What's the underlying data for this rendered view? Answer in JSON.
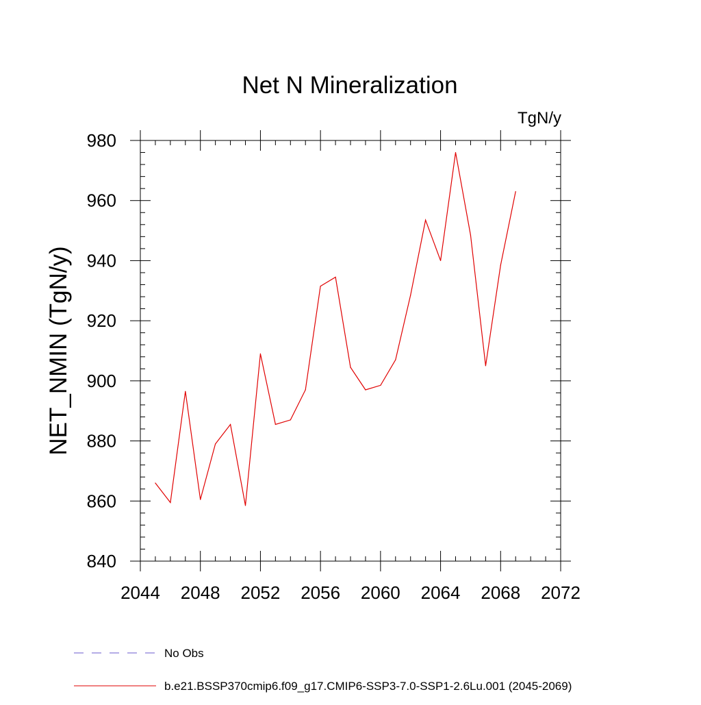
{
  "chart_data": {
    "type": "line",
    "title": "Net N Mineralization",
    "units_label": "TgN/y",
    "xlabel": "",
    "ylabel": "NET_NMIN  (TgN/y)",
    "xlim": [
      2044,
      2072
    ],
    "ylim": [
      840,
      980
    ],
    "x_ticks": [
      2044,
      2048,
      2052,
      2056,
      2060,
      2064,
      2068,
      2072
    ],
    "x_tick_labels": [
      "2044",
      "2048",
      "2052",
      "2056",
      "2060",
      "2064",
      "2068",
      "2072"
    ],
    "y_ticks": [
      840,
      860,
      880,
      900,
      920,
      940,
      960,
      980
    ],
    "y_tick_labels": [
      "840",
      "860",
      "880",
      "900",
      "920",
      "940",
      "960",
      "980"
    ],
    "grid": false,
    "legend_placement": "bottom",
    "series": [
      {
        "name": "b.e21.BSSP370cmip6.f09_g17.CMIP6-SSP3-7.0-SSP1-2.6Lu.001 (2045-2069)",
        "color": "#e00000",
        "style": "solid",
        "x": [
          2045,
          2046,
          2047,
          2048,
          2049,
          2050,
          2051,
          2052,
          2053,
          2054,
          2055,
          2056,
          2057,
          2058,
          2059,
          2060,
          2061,
          2062,
          2063,
          2064,
          2065,
          2066,
          2067,
          2068,
          2069
        ],
        "values": [
          866,
          859.5,
          896.5,
          860.5,
          879,
          885.5,
          858.5,
          909,
          885.5,
          887,
          897,
          931.5,
          934.5,
          904.5,
          897,
          898.5,
          907,
          928.5,
          953.5,
          940,
          976,
          948.5,
          905,
          938.5,
          963
        ]
      }
    ],
    "legend": [
      {
        "label": "No Obs",
        "color": "#6a5acd",
        "style": "dashed"
      },
      {
        "label": "b.e21.BSSP370cmip6.f09_g17.CMIP6-SSP3-7.0-SSP1-2.6Lu.001 (2045-2069)",
        "color": "#e00000",
        "style": "solid"
      }
    ]
  }
}
